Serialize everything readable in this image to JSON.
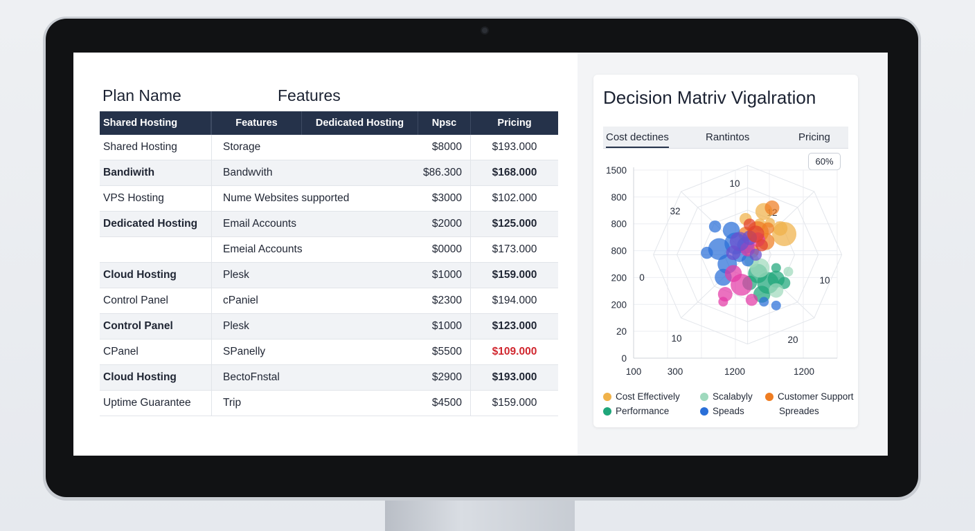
{
  "left": {
    "heading_plan": "Plan Name",
    "heading_features": "Features",
    "columns": [
      "Shared Hosting",
      "Features",
      "Dedicated Hosting",
      "Npsc",
      "Pricing"
    ],
    "rows": [
      {
        "plan": "Shared Hosting",
        "feature": "Storage",
        "value": "$8000",
        "price": "$193.000",
        "bold": false,
        "red": false
      },
      {
        "plan": "Bandiwith",
        "feature": "Bandwvith",
        "value": "$86.300",
        "price": "$168.000",
        "bold": true,
        "red": false
      },
      {
        "plan": "VPS Hosting",
        "feature": "Nume Websites supported",
        "value": "$3000",
        "price": "$102.000",
        "bold": false,
        "red": false
      },
      {
        "plan": "Dedicated Hosting",
        "feature": "Email Accounts",
        "value": "$2000",
        "price": "$125.000",
        "bold": true,
        "red": false
      },
      {
        "plan": "",
        "feature": "Emeial Accounts",
        "value": "$0000",
        "price": "$173.000",
        "bold": false,
        "red": false
      },
      {
        "plan": "Cloud Hosting",
        "feature": "Plesk",
        "value": "$1000",
        "price": "$159.000",
        "bold": true,
        "red": false
      },
      {
        "plan": "Control Panel",
        "feature": "cPaniel",
        "value": "$2300",
        "price": "$194.000",
        "bold": false,
        "red": false
      },
      {
        "plan": "Control Panel",
        "feature": "Plesk",
        "value": "$1000",
        "price": "$123.000",
        "bold": true,
        "red": false
      },
      {
        "plan": "CPanel",
        "feature": "SPanelly",
        "value": "$5500",
        "price": "$109.000",
        "bold": false,
        "red": true
      },
      {
        "plan": "Cloud Hosting",
        "feature": "BectoFnstal",
        "value": "$2900",
        "price": "$193.000",
        "bold": true,
        "red": false
      },
      {
        "plan": "Uptime Guarantee",
        "feature": "Trip",
        "value": "$4500",
        "price": "$159.000",
        "bold": false,
        "red": false
      }
    ]
  },
  "right": {
    "title": "Decision Matriv Vigalration",
    "tabs": [
      "Cost dectines",
      "Rantintos",
      "Pricing"
    ],
    "badge": "60%",
    "legend": [
      {
        "label": "Cost Effectively",
        "color": "#f0b24a"
      },
      {
        "label": "Scalabyly",
        "color": "#9fd9bd"
      },
      {
        "label": "Customer Support",
        "color": "#ef7d22"
      },
      {
        "label": "Performance",
        "color": "#1fa67a"
      },
      {
        "label": "Speads",
        "color": "#2a6fd8"
      },
      {
        "label": "Spreades",
        "color": ""
      }
    ]
  },
  "chart_data": {
    "type": "scatter",
    "title": "Decision Matriv Vigalration",
    "y_ticks": [
      "1500",
      "800",
      "800",
      "800",
      "200",
      "200",
      "20",
      "0"
    ],
    "x_ticks": [
      "100",
      "300",
      "1200",
      "1200"
    ],
    "radial_labels": [
      "10",
      "12",
      "10",
      "20",
      "10",
      "0",
      "32"
    ],
    "series": [
      {
        "name": "Cost Effectively",
        "color": "#f0b24a",
        "points": [
          [
            0.64,
            0.22,
            7
          ],
          [
            0.62,
            0.29,
            5
          ],
          [
            0.74,
            0.34,
            10
          ],
          [
            0.55,
            0.26,
            5
          ],
          [
            0.67,
            0.28,
            4
          ],
          [
            0.72,
            0.31,
            6
          ]
        ]
      },
      {
        "name": "Customer Support",
        "color": "#ef7d22",
        "points": [
          [
            0.68,
            0.2,
            6
          ],
          [
            0.61,
            0.33,
            9
          ],
          [
            0.65,
            0.38,
            7
          ],
          [
            0.55,
            0.34,
            6
          ],
          [
            0.58,
            0.43,
            6
          ],
          [
            0.66,
            0.31,
            5
          ]
        ]
      },
      {
        "name": "Performance",
        "color": "#1fa67a",
        "points": [
          [
            0.66,
            0.6,
            9
          ],
          [
            0.61,
            0.55,
            8
          ],
          [
            0.7,
            0.58,
            7
          ],
          [
            0.63,
            0.66,
            7
          ],
          [
            0.74,
            0.6,
            5
          ],
          [
            0.57,
            0.6,
            6
          ],
          [
            0.7,
            0.52,
            4
          ]
        ]
      },
      {
        "name": "Scalabyly",
        "color": "#9fd9bd",
        "points": [
          [
            0.62,
            0.52,
            8
          ],
          [
            0.58,
            0.48,
            6
          ],
          [
            0.7,
            0.64,
            6
          ],
          [
            0.76,
            0.54,
            4
          ]
        ]
      },
      {
        "name": "Speads",
        "color": "#2a6fd8",
        "points": [
          [
            0.48,
            0.32,
            7
          ],
          [
            0.5,
            0.39,
            9
          ],
          [
            0.42,
            0.42,
            9
          ],
          [
            0.46,
            0.5,
            8
          ],
          [
            0.4,
            0.3,
            5
          ],
          [
            0.44,
            0.57,
            7
          ],
          [
            0.52,
            0.45,
            6
          ],
          [
            0.56,
            0.48,
            5
          ],
          [
            0.64,
            0.7,
            4
          ],
          [
            0.7,
            0.72,
            4
          ],
          [
            0.55,
            0.4,
            7
          ],
          [
            0.36,
            0.44,
            5
          ]
        ]
      },
      {
        "name": "Magenta",
        "color": "#e33aa6",
        "points": [
          [
            0.53,
            0.61,
            9
          ],
          [
            0.45,
            0.66,
            6
          ],
          [
            0.58,
            0.69,
            5
          ],
          [
            0.49,
            0.55,
            7
          ],
          [
            0.56,
            0.42,
            6
          ],
          [
            0.61,
            0.37,
            6
          ],
          [
            0.44,
            0.7,
            4
          ]
        ]
      },
      {
        "name": "Purple",
        "color": "#6b4fcf",
        "points": [
          [
            0.52,
            0.38,
            8
          ],
          [
            0.57,
            0.36,
            6
          ],
          [
            0.49,
            0.44,
            6
          ],
          [
            0.6,
            0.45,
            5
          ]
        ]
      },
      {
        "name": "Red",
        "color": "#e2412e",
        "points": [
          [
            0.6,
            0.34,
            7
          ],
          [
            0.57,
            0.29,
            5
          ],
          [
            0.63,
            0.4,
            5
          ]
        ]
      }
    ]
  }
}
